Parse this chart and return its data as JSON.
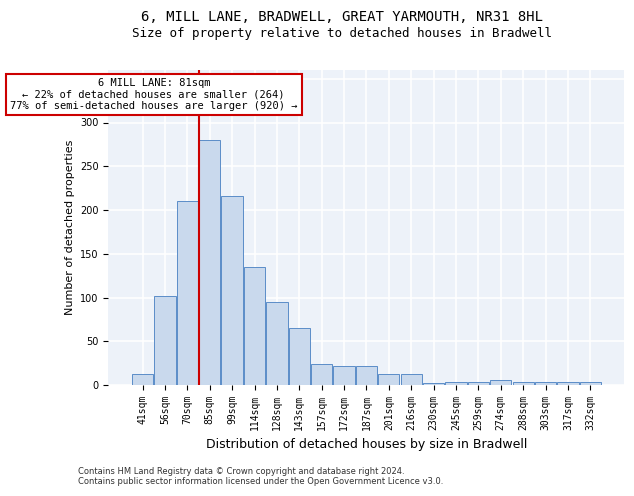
{
  "title": "6, MILL LANE, BRADWELL, GREAT YARMOUTH, NR31 8HL",
  "subtitle": "Size of property relative to detached houses in Bradwell",
  "xlabel": "Distribution of detached houses by size in Bradwell",
  "ylabel": "Number of detached properties",
  "categories": [
    "41sqm",
    "56sqm",
    "70sqm",
    "85sqm",
    "99sqm",
    "114sqm",
    "128sqm",
    "143sqm",
    "157sqm",
    "172sqm",
    "187sqm",
    "201sqm",
    "216sqm",
    "230sqm",
    "245sqm",
    "259sqm",
    "274sqm",
    "288sqm",
    "303sqm",
    "317sqm",
    "332sqm"
  ],
  "values": [
    13,
    102,
    210,
    280,
    216,
    135,
    95,
    65,
    24,
    22,
    22,
    13,
    13,
    2,
    3,
    4,
    6,
    4,
    4,
    3,
    3
  ],
  "bar_color": "#c9d9ed",
  "bar_edge_color": "#5b8dc8",
  "highlight_label": "6 MILL LANE: 81sqm",
  "annotation_line1": "← 22% of detached houses are smaller (264)",
  "annotation_line2": "77% of semi-detached houses are larger (920) →",
  "annotation_box_color": "#ffffff",
  "annotation_box_edge_color": "#cc0000",
  "vline_color": "#cc0000",
  "vline_x": 2.5,
  "ylim": [
    0,
    360
  ],
  "yticks": [
    0,
    50,
    100,
    150,
    200,
    250,
    300,
    350
  ],
  "background_color": "#edf2f9",
  "grid_color": "#ffffff",
  "footer1": "Contains HM Land Registry data © Crown copyright and database right 2024.",
  "footer2": "Contains public sector information licensed under the Open Government Licence v3.0.",
  "title_fontsize": 10,
  "subtitle_fontsize": 9,
  "ylabel_fontsize": 8,
  "xlabel_fontsize": 9,
  "tick_fontsize": 7,
  "footer_fontsize": 6,
  "annotation_fontsize": 7.5
}
